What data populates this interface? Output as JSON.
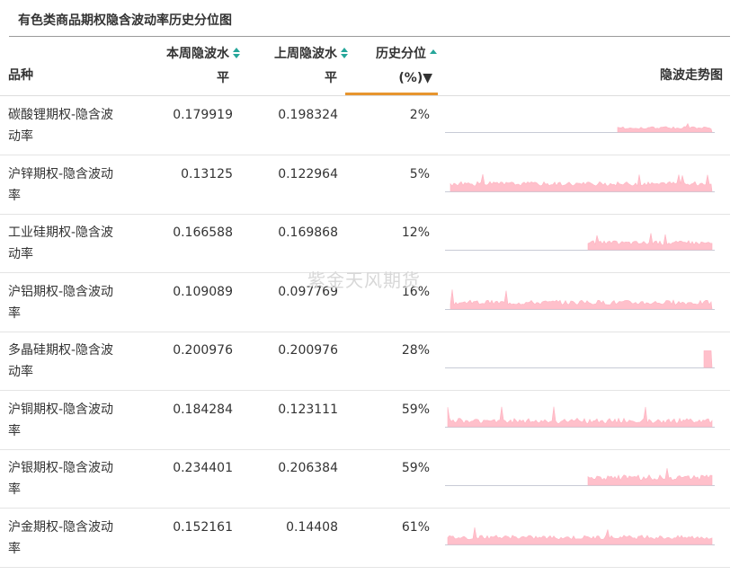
{
  "page": {
    "title": "有色类商品期权隐含波动率历史分位图",
    "watermark": "紫金天风期货"
  },
  "table": {
    "headers": {
      "variety": "品种",
      "this_week_l1": "本周隐波水",
      "this_week_l2": "平",
      "last_week_l1": "上周隐波水",
      "last_week_l2": "平",
      "percentile_l1": "历史分位",
      "percentile_l2": "(%)▼",
      "trend": "隐波走势图"
    },
    "colors": {
      "sort_icon": "#26a69a",
      "sorted_underline": "#e7952e",
      "sparkline_fill": "#ffc0cb",
      "sparkline_stroke": "#ffb3c1",
      "baseline": "#c8cbd6"
    },
    "rows": [
      {
        "name_l1": "碳酸锂期权-隐含波",
        "name_l2": "动率",
        "this_week": "0.179919",
        "last_week": "0.198324",
        "percentile": "2%",
        "spark_start": 0.64,
        "spark_level": 0.16,
        "spark_noise": 0.09
      },
      {
        "name_l1": "沪锌期权-隐含波动",
        "name_l2": "率",
        "this_week": "0.13125",
        "last_week": "0.122964",
        "percentile": "5%",
        "spark_start": 0.02,
        "spark_level": 0.28,
        "spark_noise": 0.16
      },
      {
        "name_l1": "工业硅期权-隐含波",
        "name_l2": "动率",
        "this_week": "0.166588",
        "last_week": "0.169868",
        "percentile": "12%",
        "spark_start": 0.53,
        "spark_level": 0.26,
        "spark_noise": 0.16
      },
      {
        "name_l1": "沪铝期权-隐含波动",
        "name_l2": "率",
        "this_week": "0.109089",
        "last_week": "0.097769",
        "percentile": "16%",
        "spark_start": 0.02,
        "spark_level": 0.24,
        "spark_noise": 0.18
      },
      {
        "name_l1": "多晶硅期权-隐含波",
        "name_l2": "动率",
        "this_week": "0.200976",
        "last_week": "0.200976",
        "percentile": "28%",
        "spark_start": 0.96,
        "spark_level": 0.62,
        "spark_noise": 0.0
      },
      {
        "name_l1": "沪铜期权-隐含波动",
        "name_l2": "率",
        "this_week": "0.184284",
        "last_week": "0.123111",
        "percentile": "59%",
        "spark_start": 0.01,
        "spark_level": 0.22,
        "spark_noise": 0.2
      },
      {
        "name_l1": "沪银期权-隐含波动",
        "name_l2": "率",
        "this_week": "0.234401",
        "last_week": "0.206384",
        "percentile": "59%",
        "spark_start": 0.53,
        "spark_level": 0.28,
        "spark_noise": 0.2
      },
      {
        "name_l1": "沪金期权-隐含波动",
        "name_l2": "率",
        "this_week": "0.152161",
        "last_week": "0.14408",
        "percentile": "61%",
        "spark_start": 0.01,
        "spark_level": 0.26,
        "spark_noise": 0.16
      }
    ]
  }
}
